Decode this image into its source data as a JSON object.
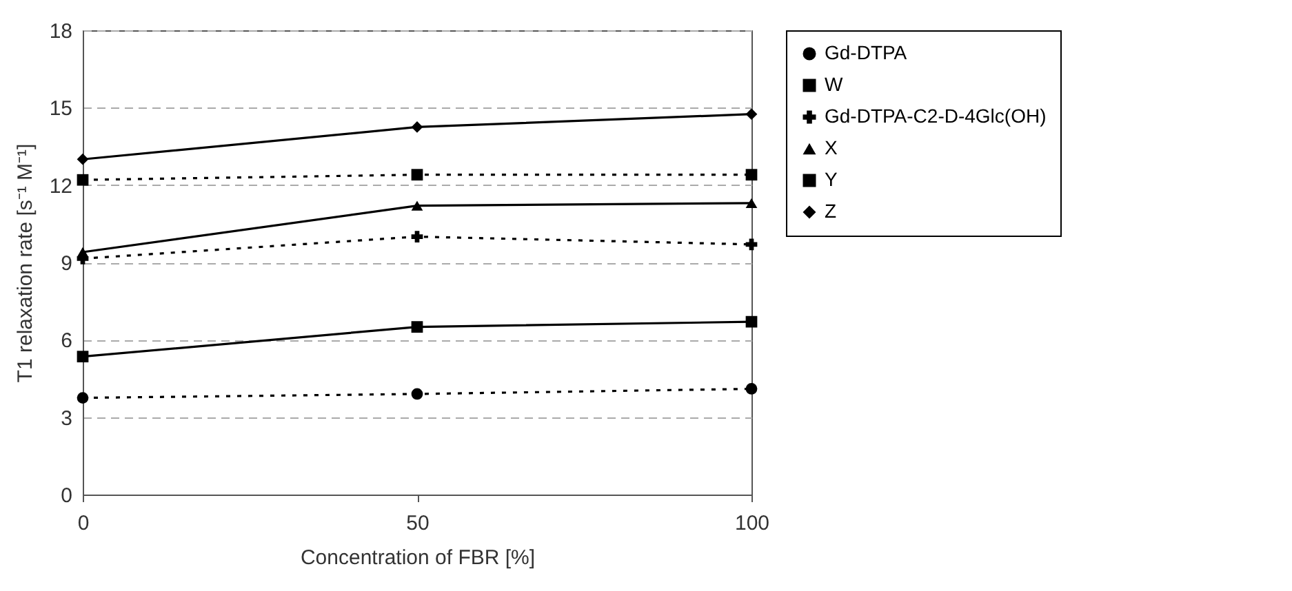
{
  "chart_data": {
    "type": "line",
    "xlabel": "Concentration of FBR [%]",
    "ylabel": "T1 relaxation rate [s⁻¹ M⁻¹]",
    "x": [
      0,
      50,
      100
    ],
    "xlim": [
      0,
      100
    ],
    "xticks": [
      0,
      50,
      100
    ],
    "ylim": [
      0,
      18
    ],
    "yticks": [
      0,
      3,
      6,
      9,
      12,
      15,
      18
    ],
    "grid": "y",
    "legend": "right",
    "series": [
      {
        "name": "Gd-DTPA",
        "color": "#000000",
        "marker": "circle",
        "line_style": "dotted",
        "values": [
          3.75,
          3.9,
          4.1
        ]
      },
      {
        "name": "W",
        "color": "#000000",
        "marker": "square",
        "line_style": "solid",
        "values": [
          5.35,
          6.5,
          6.7
        ]
      },
      {
        "name": "Gd-DTPA-C2-D-4Glc(OH)",
        "color": "#000000",
        "marker": "cross",
        "line_style": "dotted",
        "values": [
          9.15,
          10.0,
          9.7
        ]
      },
      {
        "name": "X",
        "color": "#000000",
        "marker": "triangle",
        "line_style": "solid",
        "values": [
          9.4,
          11.2,
          11.3
        ]
      },
      {
        "name": "Y",
        "color": "#000000",
        "marker": "square",
        "line_style": "dotted",
        "values": [
          12.2,
          12.4,
          12.4
        ]
      },
      {
        "name": "Z",
        "color": "#000000",
        "marker": "diamond",
        "line_style": "solid",
        "values": [
          13.0,
          14.25,
          14.75
        ]
      }
    ]
  }
}
